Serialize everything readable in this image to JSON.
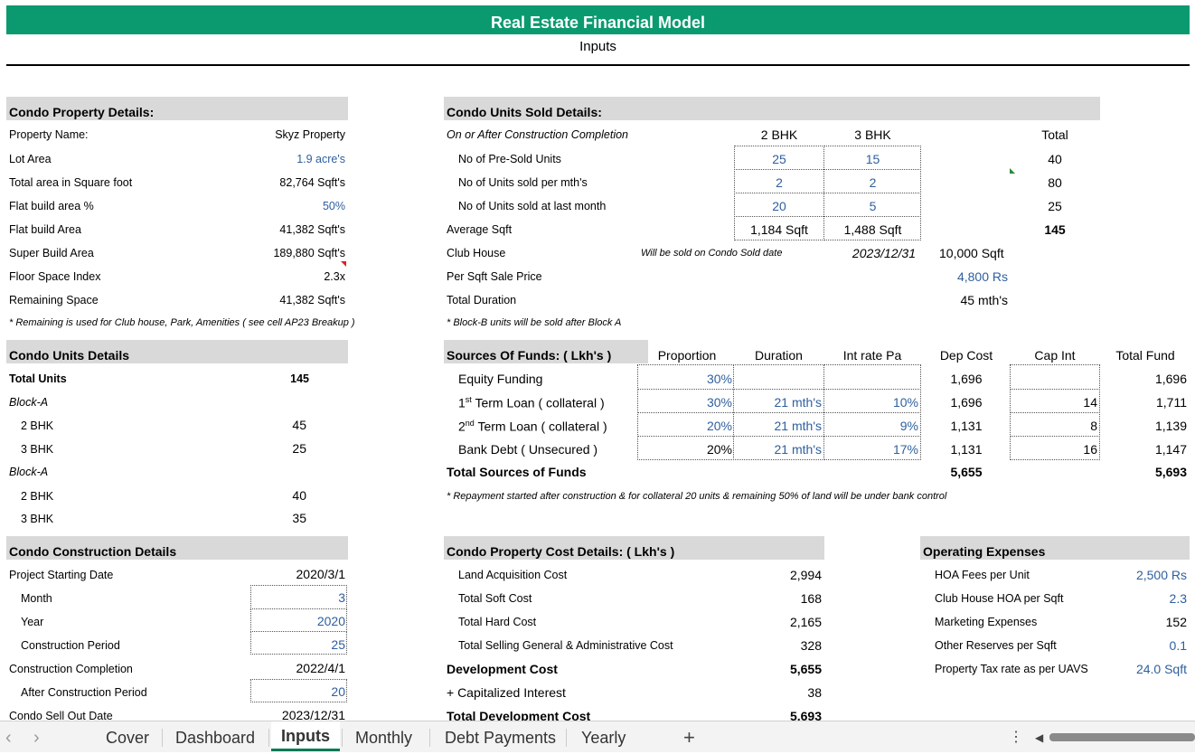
{
  "title": "Real Estate Financial Model",
  "subtitle": "Inputs",
  "property": {
    "header": "Condo Property Details:",
    "rows": [
      {
        "label": "Property Name:",
        "value": "Skyz Property"
      },
      {
        "label": "Lot Area",
        "value": "1.9 acre's"
      },
      {
        "label": "Total area in Square foot",
        "value": "82,764 Sqft's"
      },
      {
        "label": "Flat build area %",
        "value": "50%"
      },
      {
        "label": "Flat build Area",
        "value": "41,382 Sqft's"
      },
      {
        "label": "Super Build Area",
        "value": "189,880 Sqft's"
      },
      {
        "label": "Floor Space Index",
        "value": "2.3x"
      },
      {
        "label": "Remaining Space",
        "value": "41,382 Sqft's"
      }
    ],
    "note": "* Remaining is used for Club house, Park, Amenities ( see cell AP23 Breakup )"
  },
  "units": {
    "header": "Condo Units Details",
    "total_label": "Total Units",
    "total_value": "145",
    "block1_label": "Block-A",
    "b1_2bhk_label": "2 BHK",
    "b1_2bhk_value": "45",
    "b1_3bhk_label": "3 BHK",
    "b1_3bhk_value": "25",
    "block2_label": "Block-A",
    "b2_2bhk_label": "2 BHK",
    "b2_2bhk_value": "40",
    "b2_3bhk_label": "3 BHK",
    "b2_3bhk_value": "35"
  },
  "construction": {
    "header": "Condo Construction Details",
    "rows": [
      {
        "label": "Project Starting Date",
        "value": "2020/3/1"
      },
      {
        "label": "Month",
        "value": "3"
      },
      {
        "label": "Year",
        "value": "2020"
      },
      {
        "label": "Construction Period",
        "value": "25"
      },
      {
        "label": "Construction Completion",
        "value": "2022/4/1"
      },
      {
        "label": "After Construction Period",
        "value": "20"
      },
      {
        "label": "Condo Sell Out Date",
        "value": "2023/12/31"
      }
    ]
  },
  "sold": {
    "header": "Condo Units Sold Details:",
    "sub_label": "On or After Construction Completion",
    "col_2bhk": "2 BHK",
    "col_3bhk": "3 BHK",
    "col_total": "Total",
    "presold_label": "No of Pre-Sold Units",
    "presold_2": "25",
    "presold_3": "15",
    "presold_t": "40",
    "permonth_label": "No of Units sold per mth's",
    "permonth_2": "2",
    "permonth_3": "2",
    "permonth_t": "80",
    "last_label": "No of Units sold at last month",
    "last_2": "20",
    "last_3": "5",
    "last_t": "25",
    "avg_label": "Average Sqft",
    "avg_2": "1,184  Sqft",
    "avg_3": "1,488  Sqft",
    "avg_t": "145",
    "club_label": "Club House",
    "club_note": "Will be sold on Condo Sold date",
    "club_date": "2023/12/31",
    "club_area": "10,000  Sqft",
    "price_label": "Per Sqft Sale Price",
    "price_value": "4,800  Rs",
    "duration_label": "Total Duration",
    "duration_value": "45 mth's",
    "note": "* Block-B units will be sold after Block A"
  },
  "funds": {
    "header": "Sources Of Funds: ( Lkh's )",
    "cols": [
      "Proportion",
      "Duration",
      "Int rate Pa",
      "Dep Cost",
      "Cap Int",
      "Total Fund"
    ],
    "rows": [
      {
        "label": "Equity Funding",
        "sup": "",
        "label2": "",
        "prop": "30%",
        "dur": "",
        "rate": "",
        "dep": "1,696",
        "cap": "",
        "total": "1,696"
      },
      {
        "label": "1",
        "sup": "st",
        "label2": "Term Loan ( collateral )",
        "prop": "30%",
        "dur": "21  mth's",
        "rate": "10%",
        "dep": "1,696",
        "cap": "14",
        "total": "1,711"
      },
      {
        "label": "2",
        "sup": "nd",
        "label2": "Term Loan ( collateral )",
        "prop": "20%",
        "dur": "21  mth's",
        "rate": "9%",
        "dep": "1,131",
        "cap": "8",
        "total": "1,139"
      },
      {
        "label": "Bank Debt ( Unsecured )",
        "sup": "",
        "label2": "",
        "prop": "20%",
        "dur": "21  mth's",
        "rate": "17%",
        "dep": "1,131",
        "cap": "16",
        "total": "1,147"
      }
    ],
    "total_label": "Total Sources of Funds",
    "total_dep": "5,655",
    "total_fund": "5,693",
    "note": "* Repayment started after construction & for collateral 20 units & remaining 50% of land will be under bank control"
  },
  "cost": {
    "header": "Condo Property Cost Details: ( Lkh's )",
    "rows": [
      {
        "label": "Land Acquisition Cost",
        "value": "2,994",
        "bold": false
      },
      {
        "label": "Total Soft Cost",
        "value": "168",
        "bold": false
      },
      {
        "label": "Total Hard Cost",
        "value": "2,165",
        "bold": false
      },
      {
        "label": "Total Selling General & Administrative Cost",
        "value": "328",
        "bold": false
      },
      {
        "label": "Development Cost",
        "value": "5,655",
        "bold": true
      },
      {
        "label": "+ Capitalized Interest",
        "value": "38",
        "bold": false
      },
      {
        "label": "Total Development Cost",
        "value": "5,693",
        "bold": true
      }
    ]
  },
  "opex": {
    "header": "Operating Expenses",
    "rows": [
      {
        "label": "HOA Fees per Unit",
        "value": "2,500  Rs"
      },
      {
        "label": "Club House HOA per Sqft",
        "value": "2.3"
      },
      {
        "label": "Marketing Expenses",
        "value": "152"
      },
      {
        "label": "Other Reserves per Sqft",
        "value": "0.1"
      },
      {
        "label": "Property Tax rate as per UAVS",
        "value": "24.0  Sqft"
      }
    ]
  },
  "tabs": {
    "prev_icon": "‹",
    "next_icon": "›",
    "items": [
      "Cover",
      "Dashboard",
      "Inputs",
      "Monthly",
      "Debt Payments",
      "Yearly"
    ],
    "add_icon": "+",
    "more_icon": "⋮",
    "scroll_icon": "◀"
  }
}
